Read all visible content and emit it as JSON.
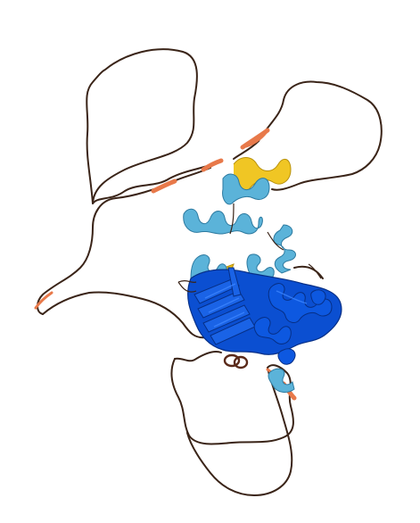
{
  "image": {
    "subject": "protein-structure-ribbon",
    "confidence_colors": {
      "very_high": "#0b4fd1",
      "confident": "#5bb3d9",
      "low": "#f0c419",
      "very_low": "#e8794a",
      "coil": "#3a2418"
    }
  }
}
